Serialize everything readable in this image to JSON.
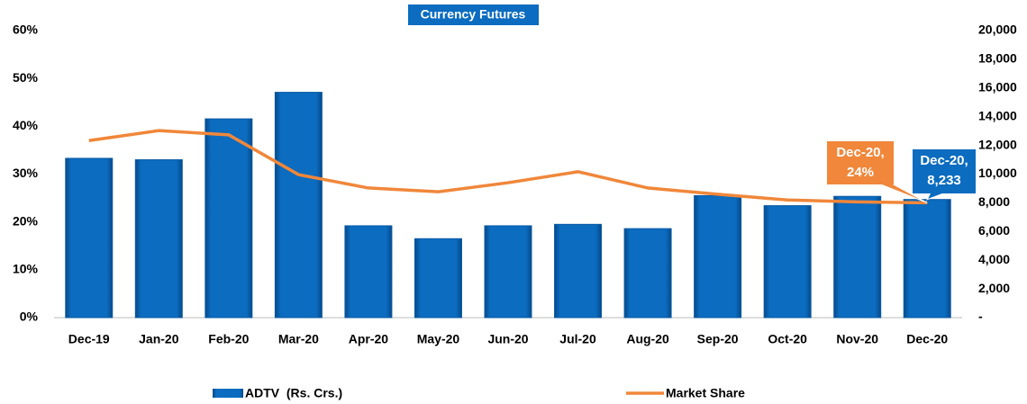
{
  "chart_data": {
    "type": "combo",
    "title": "Currency Futures",
    "categories": [
      "Dec-19",
      "Jan-20",
      "Feb-20",
      "Mar-20",
      "Apr-20",
      "May-20",
      "Jun-20",
      "Jul-20",
      "Aug-20",
      "Sep-20",
      "Oct-20",
      "Nov-20",
      "Dec-20"
    ],
    "series": [
      {
        "name": "ADTV  (Rs. Crs.)",
        "type": "bar",
        "axis": "y2",
        "color": "#0b6cc0",
        "values": [
          11100,
          11000,
          13850,
          15700,
          6400,
          5500,
          6400,
          6500,
          6200,
          8500,
          7800,
          8450,
          8233
        ],
        "value_labels": [
          null,
          null,
          null,
          null,
          null,
          null,
          null,
          null,
          null,
          null,
          null,
          null,
          "Dec-20,\n8,233"
        ]
      },
      {
        "name": "Market Share",
        "type": "line",
        "color": "#f0873a",
        "values": [
          37.0,
          39.1,
          38.2,
          29.9,
          27.1,
          26.3,
          28.2,
          30.5,
          27.1,
          25.8,
          24.6,
          24.2,
          24
        ],
        "value_labels": [
          null,
          null,
          null,
          null,
          null,
          null,
          null,
          null,
          null,
          null,
          null,
          null,
          "Dec-20,\n24%"
        ]
      }
    ],
    "ylim": [
      0,
      60
    ],
    "yticks": [
      {
        "value": 0,
        "label": "0%"
      },
      {
        "value": 10,
        "label": "10%"
      },
      {
        "value": 20,
        "label": "20%"
      },
      {
        "value": 30,
        "label": "30%"
      },
      {
        "value": 40,
        "label": "40%"
      },
      {
        "value": 50,
        "label": "50%"
      },
      {
        "value": 60,
        "label": "60%"
      }
    ],
    "y2lim": [
      0,
      20000
    ],
    "y2ticks": [
      {
        "value": 0,
        "label": "-"
      },
      {
        "value": 2000,
        "label": "2,000"
      },
      {
        "value": 4000,
        "label": "4,000"
      },
      {
        "value": 6000,
        "label": "6,000"
      },
      {
        "value": 8000,
        "label": "8,000"
      },
      {
        "value": 10000,
        "label": "10,000"
      },
      {
        "value": 12000,
        "label": "12,000"
      },
      {
        "value": 14000,
        "label": "14,000"
      },
      {
        "value": 16000,
        "label": "16,000"
      },
      {
        "value": 18000,
        "label": "18,000"
      },
      {
        "value": 20000,
        "label": "20,000"
      }
    ],
    "grid": false
  }
}
